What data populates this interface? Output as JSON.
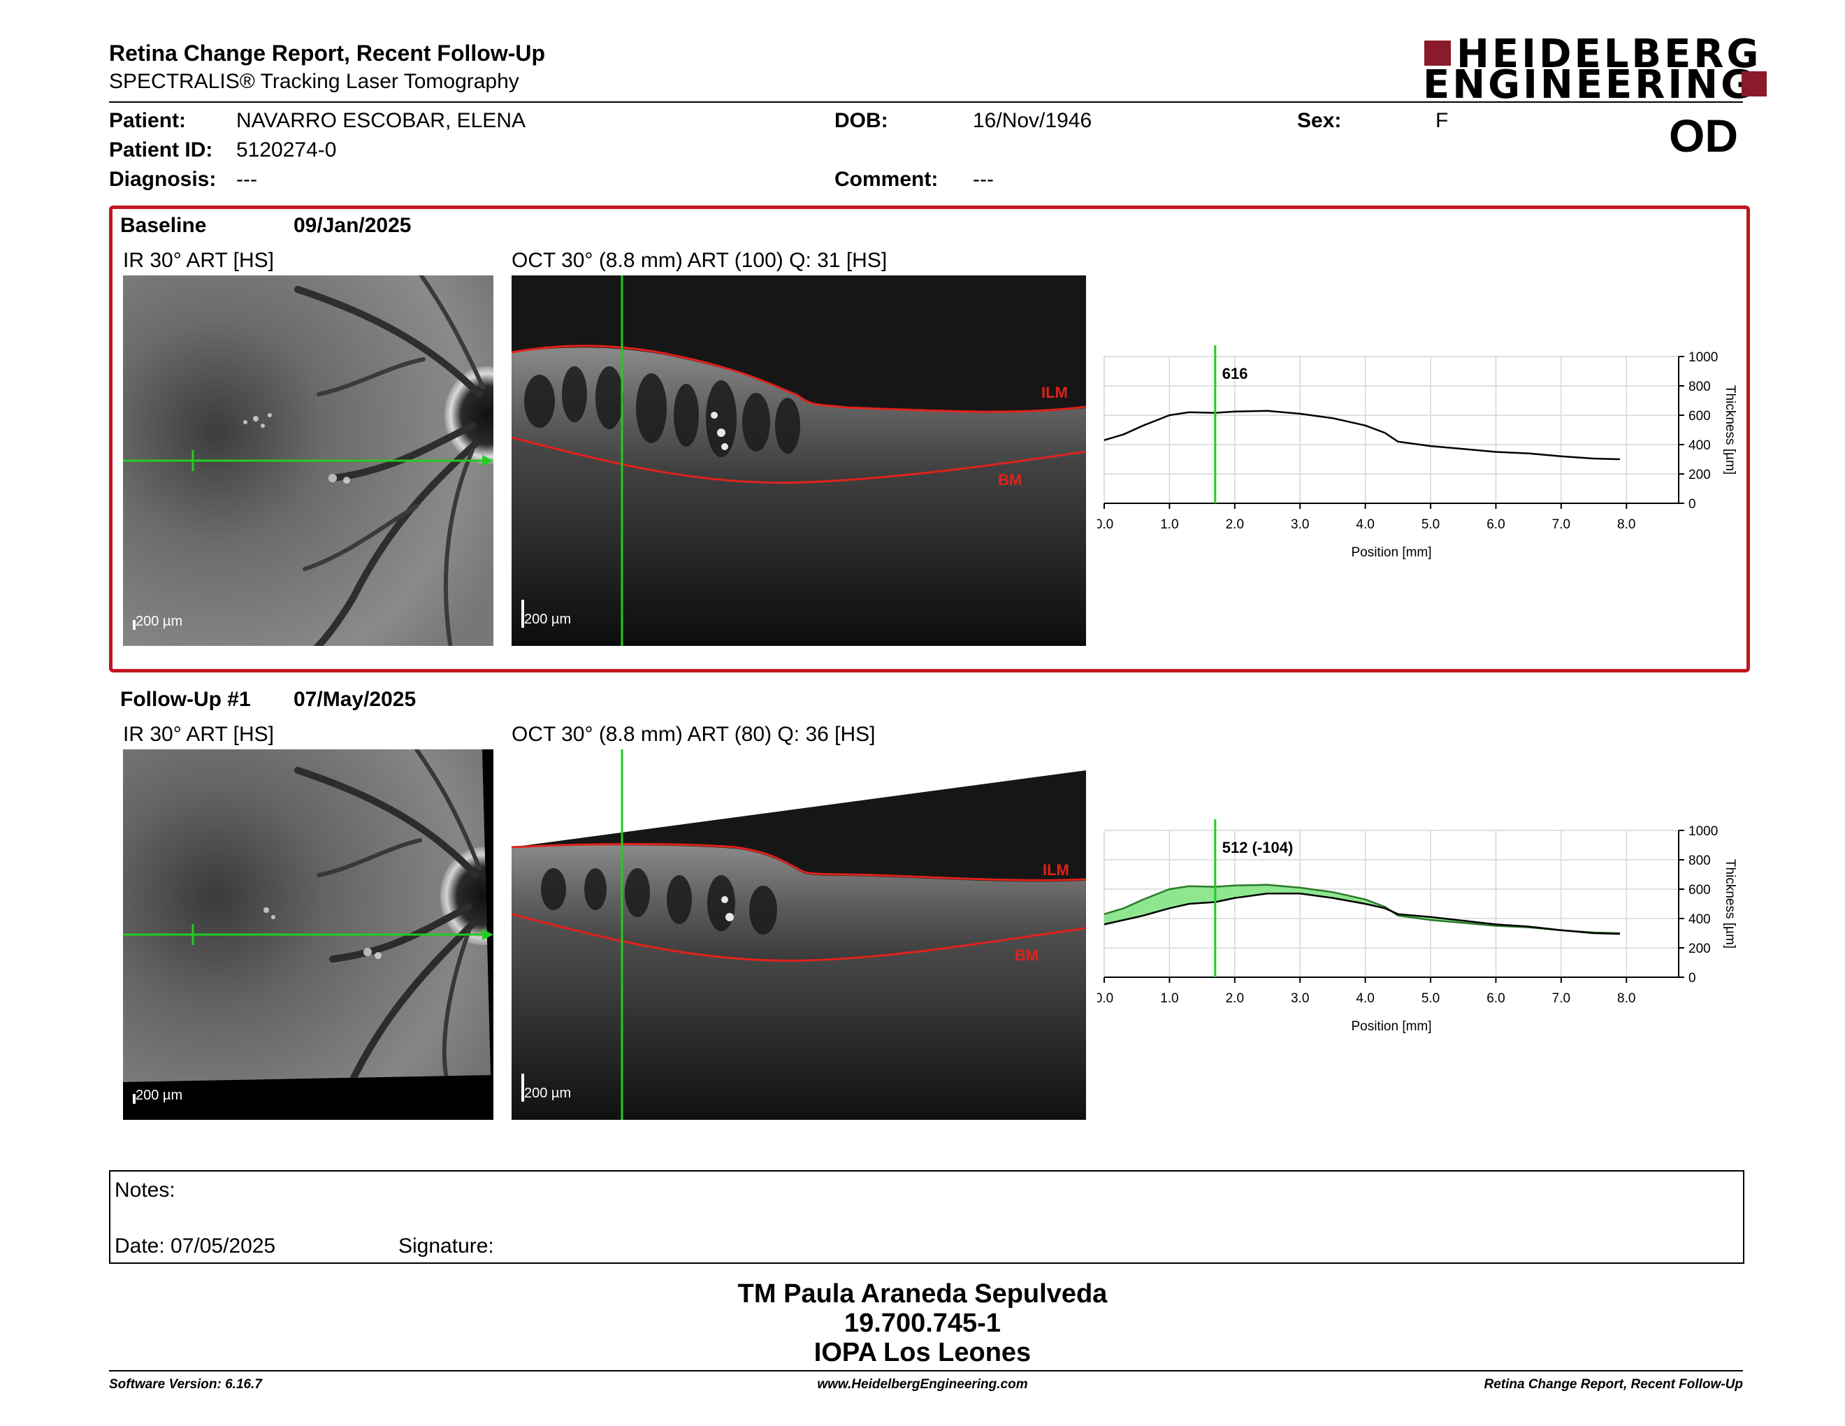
{
  "header": {
    "title": "Retina Change Report, Recent Follow-Up",
    "subtitle": "SPECTRALIS® Tracking Laser Tomography",
    "logo_line1": "HEIDELBERG",
    "logo_line2": "ENGINEERING",
    "eye": "OD"
  },
  "patient": {
    "patient_label": "Patient:",
    "patient_value": "NAVARRO ESCOBAR, ELENA",
    "id_label": "Patient ID:",
    "id_value": "5120274-0",
    "diagnosis_label": "Diagnosis:",
    "diagnosis_value": "---",
    "dob_label": "DOB:",
    "dob_value": "16/Nov/1946",
    "comment_label": "Comment:",
    "comment_value": "---",
    "sex_label": "Sex:",
    "sex_value": "F"
  },
  "baseline": {
    "label": "Baseline",
    "date": "09/Jan/2025",
    "ir_label": "IR 30° ART [HS]",
    "oct_label": "OCT 30° (8.8 mm) ART (100) Q: 31 [HS]",
    "scale_ir": "200 µm",
    "scale_oct": "200 µm",
    "layer_top": "ILM",
    "layer_bottom": "BM"
  },
  "followup": {
    "label": "Follow-Up #1",
    "date": "07/May/2025",
    "ir_label": "IR 30° ART [HS]",
    "oct_label": "OCT 30° (8.8 mm) ART (80) Q: 36 [HS]",
    "scale_ir": "200 µm",
    "scale_oct": "200 µm",
    "layer_top": "ILM",
    "layer_bottom": "BM"
  },
  "chart_data": [
    {
      "type": "line",
      "xlabel": "Position [mm]",
      "ylabel": "Thickness [µm]",
      "xlim": [
        0,
        8.8
      ],
      "ylim": [
        0,
        1000
      ],
      "x_ticks": [
        "0.0",
        "1.0",
        "2.0",
        "3.0",
        "4.0",
        "5.0",
        "6.0",
        "7.0",
        "8.0"
      ],
      "y_ticks": [
        "0",
        "200",
        "400",
        "600",
        "800",
        "1000"
      ],
      "cursor_x": 1.7,
      "cursor_label": "616",
      "cursor_color": "#22cc22",
      "series": [
        {
          "color": "#000000",
          "x": [
            0.0,
            0.3,
            0.6,
            1.0,
            1.3,
            1.7,
            2.0,
            2.5,
            3.0,
            3.5,
            4.0,
            4.3,
            4.5,
            5.0,
            5.5,
            6.0,
            6.5,
            7.0,
            7.5,
            7.9
          ],
          "y": [
            430,
            470,
            530,
            600,
            620,
            616,
            625,
            630,
            610,
            580,
            530,
            480,
            420,
            390,
            370,
            350,
            340,
            320,
            305,
            300
          ]
        }
      ]
    },
    {
      "type": "line",
      "xlabel": "Position [mm]",
      "ylabel": "Thickness [µm]",
      "xlim": [
        0,
        8.8
      ],
      "ylim": [
        0,
        1000
      ],
      "x_ticks": [
        "0.0",
        "1.0",
        "2.0",
        "3.0",
        "4.0",
        "5.0",
        "6.0",
        "7.0",
        "8.0"
      ],
      "y_ticks": [
        "0",
        "200",
        "400",
        "600",
        "800",
        "1000"
      ],
      "cursor_x": 1.7,
      "cursor_label": "512 (-104)",
      "cursor_color": "#22cc22",
      "decrease_fill": "#8ee68e",
      "increase_fill": "#e06060",
      "series": [
        {
          "color": "#2a7a2a",
          "x": [
            0.0,
            0.3,
            0.6,
            1.0,
            1.3,
            1.7,
            2.0,
            2.5,
            3.0,
            3.5,
            4.0,
            4.3,
            4.5,
            5.0,
            5.5,
            6.0,
            6.5,
            7.0,
            7.5,
            7.9
          ],
          "y": [
            430,
            470,
            530,
            600,
            620,
            616,
            625,
            630,
            610,
            580,
            530,
            480,
            420,
            390,
            370,
            350,
            340,
            320,
            305,
            300
          ]
        },
        {
          "color": "#000000",
          "x": [
            0.0,
            0.3,
            0.6,
            1.0,
            1.3,
            1.7,
            2.0,
            2.5,
            3.0,
            3.5,
            4.0,
            4.3,
            4.5,
            5.0,
            5.5,
            6.0,
            6.5,
            7.0,
            7.5,
            7.9
          ],
          "y": [
            360,
            390,
            420,
            470,
            500,
            512,
            540,
            570,
            570,
            540,
            500,
            470,
            430,
            410,
            385,
            360,
            345,
            320,
            300,
            295
          ]
        }
      ]
    }
  ],
  "notes": {
    "notes_label": "Notes:",
    "date_label": "Date: 07/05/2025",
    "signature_label": "Signature:"
  },
  "signer": {
    "name": "TM Paula Araneda Sepulveda",
    "id": "19.700.745-1",
    "org": "IOPA Los Leones"
  },
  "footer": {
    "software": "Software Version: 6.16.7",
    "url": "www.HeidelbergEngineering.com",
    "report": "Retina Change Report, Recent Follow-Up"
  },
  "colors": {
    "accent_red": "#c0161e",
    "logo_red": "#8b1a2b",
    "cursor_green": "#22cc22",
    "layer_red": "#e0221c"
  }
}
